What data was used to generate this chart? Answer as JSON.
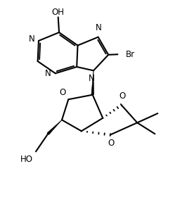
{
  "bg_color": "#ffffff",
  "line_color": "#000000",
  "line_width": 1.5,
  "font_size": 8.5,
  "figsize": [
    2.66,
    2.8
  ],
  "dpi": 100,
  "xlim": [
    0,
    10
  ],
  "ylim": [
    0,
    10.5
  ]
}
